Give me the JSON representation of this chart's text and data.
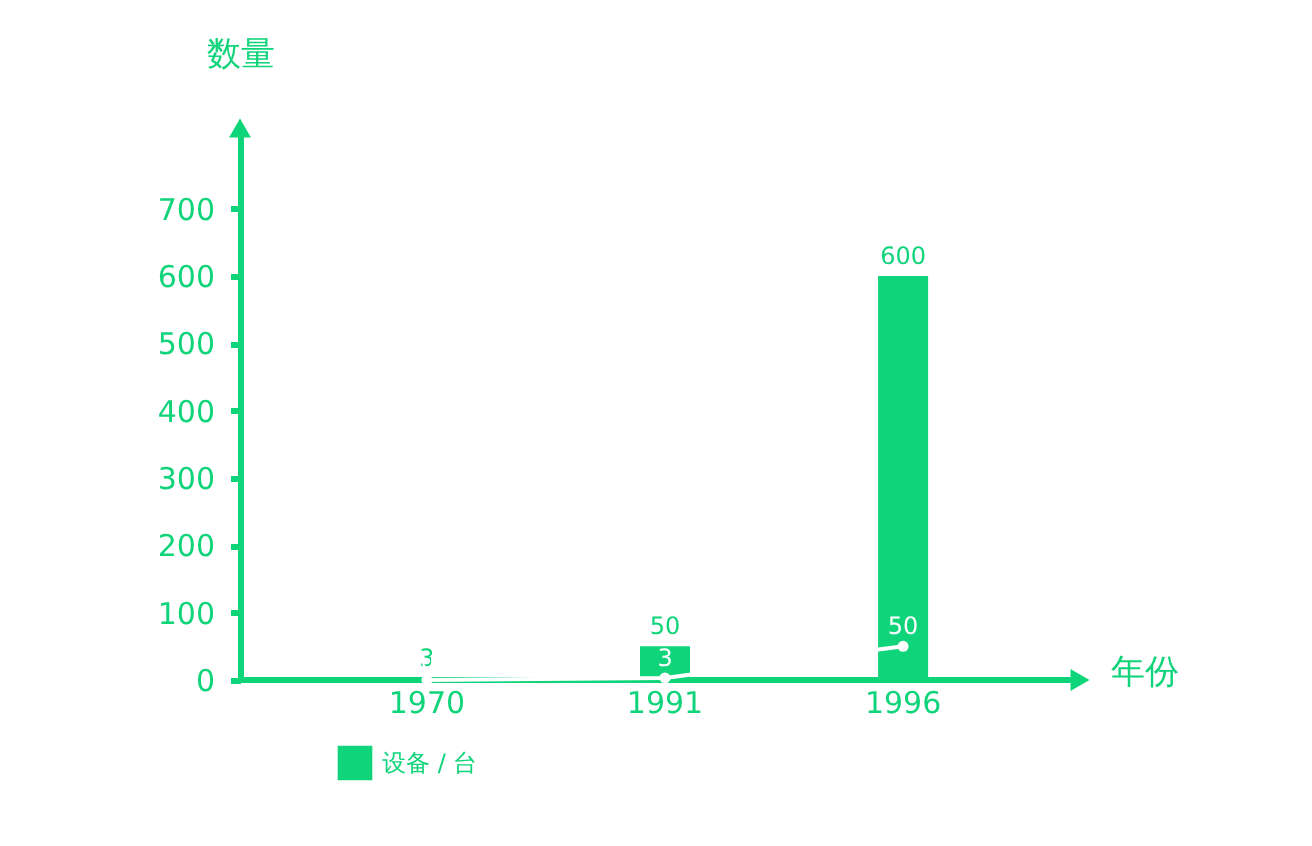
{
  "chart_data": {
    "type": "bar",
    "xlabel": "年份",
    "ylabel": "数量",
    "categories": [
      "1970",
      "1991",
      "1996"
    ],
    "series": [
      {
        "name": "设备 / 台",
        "type": "bar",
        "color": "#10d47a",
        "values": [
          3,
          50,
          600
        ]
      },
      {
        "type": "line",
        "color": "#ffffff",
        "values": [
          0,
          3,
          50
        ],
        "value_labels": [
          null,
          "3",
          "50"
        ],
        "marker": "circle"
      }
    ],
    "value_labels": [
      "3",
      "50",
      "600"
    ],
    "ylim": [
      0,
      820
    ],
    "yticks": [
      0,
      100,
      200,
      300,
      400,
      500,
      600,
      700
    ],
    "grid": false,
    "legend": "bottom left"
  }
}
